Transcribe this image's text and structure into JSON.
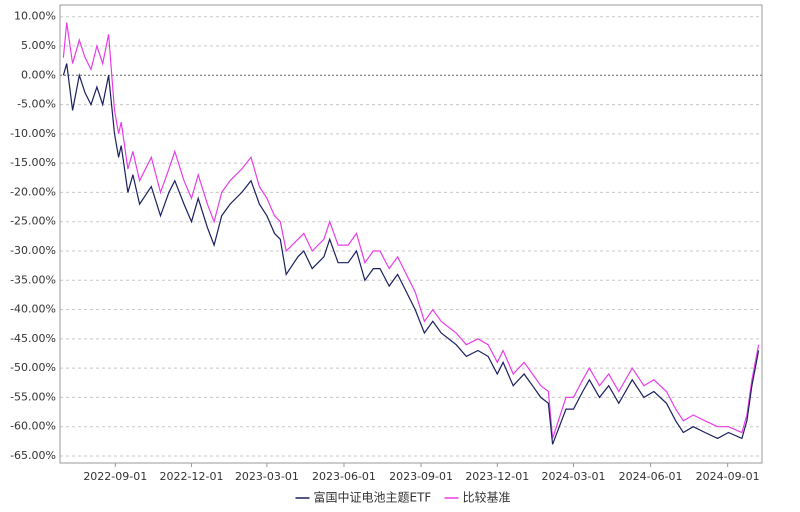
{
  "chart_data": {
    "type": "line",
    "x": [
      "2022-07-01",
      "2022-07-05",
      "2022-07-12",
      "2022-07-20",
      "2022-07-27",
      "2022-08-03",
      "2022-08-10",
      "2022-08-17",
      "2022-08-24",
      "2022-08-31",
      "2022-09-05",
      "2022-09-08",
      "2022-09-16",
      "2022-09-22",
      "2022-09-30",
      "2022-10-14",
      "2022-10-25",
      "2022-11-04",
      "2022-11-11",
      "2022-11-22",
      "2022-12-01",
      "2022-12-09",
      "2022-12-20",
      "2022-12-28",
      "2023-01-06",
      "2023-01-16",
      "2023-01-30",
      "2023-02-10",
      "2023-02-20",
      "2023-03-01",
      "2023-03-10",
      "2023-03-17",
      "2023-03-24",
      "2023-04-07",
      "2023-04-14",
      "2023-04-24",
      "2023-05-08",
      "2023-05-15",
      "2023-05-25",
      "2023-06-06",
      "2023-06-16",
      "2023-06-26",
      "2023-07-06",
      "2023-07-14",
      "2023-07-25",
      "2023-08-04",
      "2023-08-11",
      "2023-08-25",
      "2023-09-05",
      "2023-09-15",
      "2023-09-25",
      "2023-10-13",
      "2023-10-25",
      "2023-11-08",
      "2023-11-20",
      "2023-12-01",
      "2023-12-08",
      "2023-12-20",
      "2024-01-02",
      "2024-01-12",
      "2024-01-22",
      "2024-01-31",
      "2024-02-05",
      "2024-02-21",
      "2024-03-01",
      "2024-03-12",
      "2024-03-20",
      "2024-04-01",
      "2024-04-12",
      "2024-04-24",
      "2024-05-10",
      "2024-05-24",
      "2024-06-05",
      "2024-06-20",
      "2024-07-01",
      "2024-07-10",
      "2024-07-22",
      "2024-08-05",
      "2024-08-20",
      "2024-09-02",
      "2024-09-18",
      "2024-09-24",
      "2024-09-30",
      "2024-10-08"
    ],
    "series": [
      {
        "name": "富国中证电池主题ETF",
        "color": "#1a1f5e",
        "values": [
          0,
          2,
          -6,
          0,
          -3,
          -5,
          -2,
          -5,
          0,
          -10,
          -14,
          -12,
          -20,
          -17,
          -22,
          -19,
          -24,
          -20,
          -18,
          -22,
          -25,
          -21,
          -26,
          -29,
          -24,
          -22,
          -20,
          -18,
          -22,
          -24,
          -27,
          -28,
          -34,
          -31,
          -30,
          -33,
          -31,
          -28,
          -32,
          -32,
          -30,
          -35,
          -33,
          -33,
          -36,
          -34,
          -36,
          -40,
          -44,
          -42,
          -44,
          -46,
          -48,
          -47,
          -48,
          -51,
          -49,
          -53,
          -51,
          -53,
          -55,
          -56,
          -63,
          -57,
          -57,
          -54,
          -52,
          -55,
          -53,
          -56,
          -52,
          -55,
          -54,
          -56,
          -59,
          -61,
          -60,
          -61,
          -62,
          -61,
          -62,
          -59,
          -53,
          -47
        ]
      },
      {
        "name": "比较基准",
        "color": "#e83ee8",
        "values": [
          3,
          9,
          2,
          6,
          3,
          1,
          5,
          2,
          7,
          -6,
          -10,
          -8,
          -16,
          -13,
          -18,
          -14,
          -20,
          -16,
          -13,
          -18,
          -21,
          -17,
          -22,
          -25,
          -20,
          -18,
          -16,
          -14,
          -19,
          -21,
          -24,
          -25,
          -30,
          -28,
          -27,
          -30,
          -28,
          -25,
          -29,
          -29,
          -27,
          -32,
          -30,
          -30,
          -33,
          -31,
          -33,
          -37,
          -42,
          -40,
          -42,
          -44,
          -46,
          -45,
          -46,
          -49,
          -47,
          -51,
          -49,
          -51,
          -53,
          -54,
          -62,
          -55,
          -55,
          -52,
          -50,
          -53,
          -51,
          -54,
          -50,
          -53,
          -52,
          -54,
          -57,
          -59,
          -58,
          -59,
          -60,
          -60,
          -61,
          -58,
          -52,
          -46
        ]
      }
    ],
    "xlim": [
      "2022-06-27",
      "2024-10-12"
    ],
    "xticks": [
      "2022-09-01",
      "2022-12-01",
      "2023-03-01",
      "2023-06-01",
      "2023-09-01",
      "2023-12-01",
      "2024-03-01",
      "2024-06-01",
      "2024-09-01"
    ],
    "ylim": [
      -66.2,
      12
    ],
    "yticks": [
      {
        "value": 10,
        "label": "10.00%"
      },
      {
        "value": 5,
        "label": "5.00%"
      },
      {
        "value": 0,
        "label": "0.00%"
      },
      {
        "value": -5,
        "label": "-5.00%"
      },
      {
        "value": -10,
        "label": "-10.00%"
      },
      {
        "value": -15,
        "label": "-15.00%"
      },
      {
        "value": -20,
        "label": "-20.00%"
      },
      {
        "value": -25,
        "label": "-25.00%"
      },
      {
        "value": -30,
        "label": "-30.00%"
      },
      {
        "value": -35,
        "label": "-35.00%"
      },
      {
        "value": -40,
        "label": "-40.00%"
      },
      {
        "value": -45,
        "label": "-45.00%"
      },
      {
        "value": -50,
        "label": "-50.00%"
      },
      {
        "value": -55,
        "label": "-55.00%"
      },
      {
        "value": -60,
        "label": "-60.00%"
      },
      {
        "value": -65,
        "label": "-65.00%"
      }
    ],
    "grid": true,
    "legend": "bottom"
  }
}
